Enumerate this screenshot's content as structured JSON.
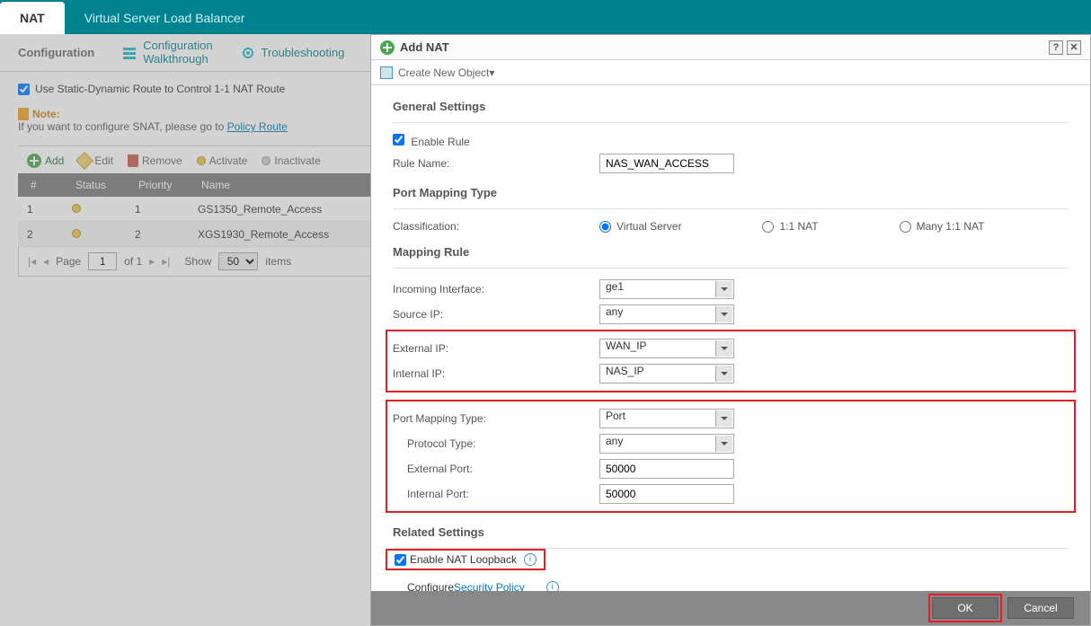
{
  "tabs": {
    "nat": "NAT",
    "vslb": "Virtual Server Load Balancer"
  },
  "subnav": {
    "configuration": "Configuration",
    "walkthrough_l1": "Configuration",
    "walkthrough_l2": "Walkthrough",
    "troubleshooting": "Troubleshooting"
  },
  "route_cb": {
    "label": "Use Static-Dynamic Route to Control 1-1 NAT Route"
  },
  "note": {
    "title": "Note:",
    "body_pre": "If you want to configure SNAT, please go to ",
    "link": "Policy Route"
  },
  "toolbar": {
    "add": "Add",
    "edit": "Edit",
    "remove": "Remove",
    "activate": "Activate",
    "inactivate": "Inactivate"
  },
  "grid": {
    "headers": {
      "num": "#",
      "status": "Status",
      "priority": "Priority",
      "name": "Name"
    },
    "rows": [
      {
        "num": "1",
        "priority": "1",
        "name": "GS1350_Remote_Access"
      },
      {
        "num": "2",
        "priority": "2",
        "name": "XGS1930_Remote_Access"
      }
    ]
  },
  "pager": {
    "page_label": "Page",
    "page_val": "1",
    "of": "of 1",
    "show": "Show",
    "size": "50",
    "items": "items"
  },
  "dialog": {
    "title": "Add NAT",
    "create_obj": "Create New Object▾",
    "sections": {
      "general": "General Settings",
      "pmt": "Port Mapping Type",
      "mapping": "Mapping Rule",
      "related": "Related Settings"
    },
    "general": {
      "enable": "Enable Rule",
      "rule_name_label": "Rule Name:",
      "rule_name_value": "NAS_WAN_ACCESS"
    },
    "pmt": {
      "class_label": "Classification:",
      "virtual": "Virtual Server",
      "nat11": "1:1 NAT",
      "manynat": "Many 1:1 NAT"
    },
    "mapping": {
      "incoming_label": "Incoming Interface:",
      "incoming_val": "ge1",
      "source_label": "Source IP:",
      "source_val": "any",
      "ext_ip_label": "External IP:",
      "ext_ip_val": "WAN_IP",
      "int_ip_label": "Internal IP:",
      "int_ip_val": "NAS_IP",
      "pmt_label": "Port Mapping Type:",
      "pmt_val": "Port",
      "proto_label": "Protocol Type:",
      "proto_val": "any",
      "ext_port_label": "External Port:",
      "ext_port_val": "50000",
      "int_port_label": "Internal Port:",
      "int_port_val": "50000"
    },
    "related": {
      "loopback": "Enable NAT Loopback",
      "configure": "Configure ",
      "sec_policy": "Security Policy"
    },
    "buttons": {
      "ok": "OK",
      "cancel": "Cancel"
    }
  }
}
